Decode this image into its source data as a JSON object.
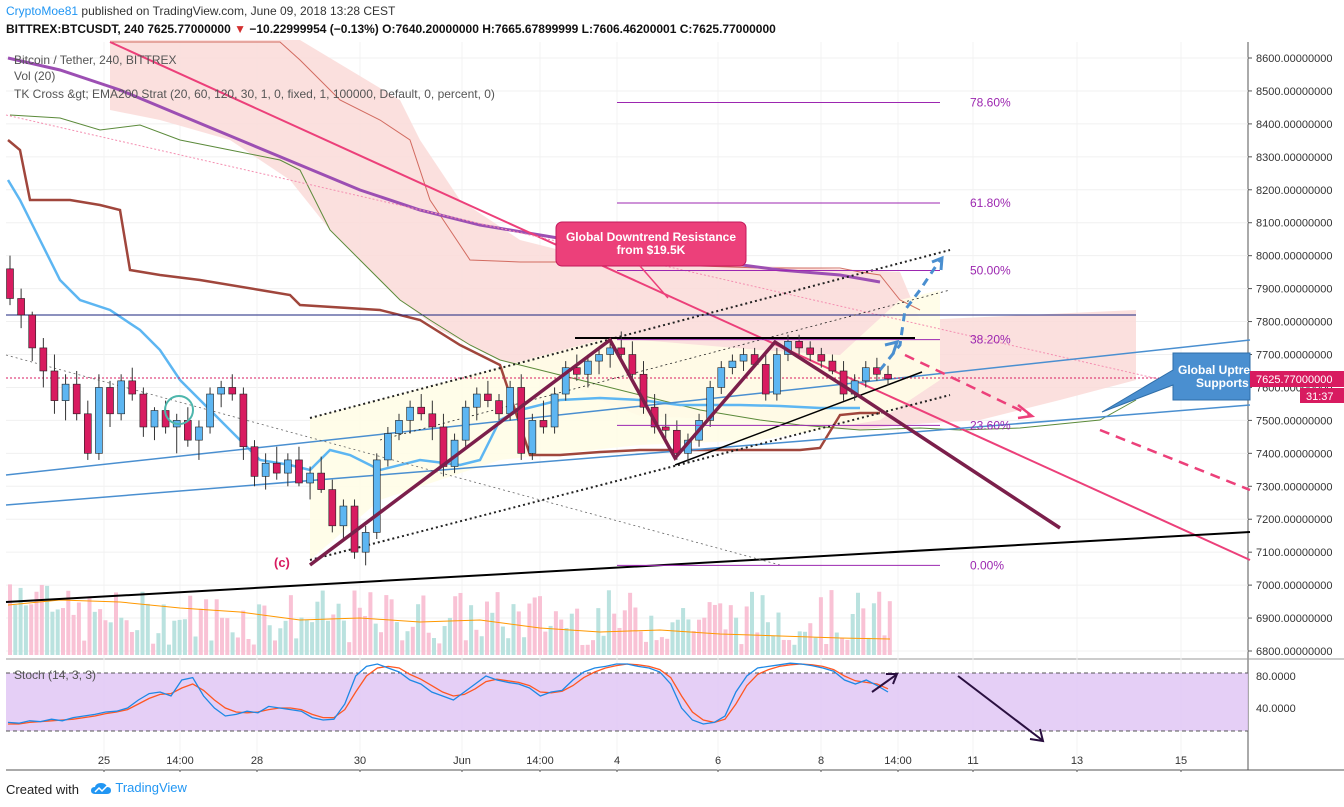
{
  "header": {
    "author": "CryptoMoe81",
    "published": "published on TradingView.com, June 09, 2018 13:28 CEST",
    "symbol_line": "BITTREX:BTCUSDT, 240  7625.77000000",
    "change": "−10.22999954 (−0.13%)",
    "ohlc": "O:7640.20000000 H:7665.67899999 L:7606.46200001 C:7625.77000000"
  },
  "legend": {
    "title": "Bitcoin / Tether, 240, BITTREX",
    "vol": "Vol (20)",
    "strategy": "TK Cross &gt; EMA200 Strat (20, 60, 120, 30, 1, 0, fixed, 1, 100000, Default, 0, percent, 0)"
  },
  "stoch_label": "Stoch (14, 3, 3)",
  "footer": {
    "created": "Created with",
    "brand": "TradingView"
  },
  "annotations": {
    "resistance": [
      "Global Downtrend Resistance",
      "from $19.5K"
    ],
    "support": [
      "Global Uptrend",
      "Supports"
    ],
    "wave_label": "(c)"
  },
  "colors": {
    "up": "#26a69a",
    "down": "#d81b60",
    "tenkan": "#5db6f2",
    "kijun": "#a0463c",
    "ema200": "#9c4fb3",
    "fib": "#9c27b0",
    "callout": "#ec407a",
    "support_box": "#4a8fd0"
  },
  "chart_data": {
    "type": "candlestick",
    "symbol": "BTCUSDT",
    "timeframe": "240",
    "last_price": "7625.77000000",
    "countdown": "31:37",
    "y_axis": {
      "range": [
        6780,
        8640
      ],
      "ticks": [
        "8600.00000000",
        "8500.00000000",
        "8400.00000000",
        "8300.00000000",
        "8200.00000000",
        "8100.00000000",
        "8000.00000000",
        "7900.00000000",
        "7800.00000000",
        "7700.00000000",
        "7600.00000000",
        "7500.00000000",
        "7400.00000000",
        "7300.00000000",
        "7200.00000000",
        "7100.00000000",
        "7000.00000000",
        "6900.00000000",
        "6800.00000000"
      ]
    },
    "x_axis": {
      "ticks": [
        "25",
        "14:00",
        "28",
        "30",
        "Jun",
        "14:00",
        "4",
        "6",
        "8",
        "14:00",
        "11",
        "13",
        "15"
      ]
    },
    "fib_levels": [
      {
        "label": "78.60%",
        "value": 8465
      },
      {
        "label": "61.80%",
        "value": 8160
      },
      {
        "label": "50.00%",
        "value": 7955
      },
      {
        "label": "38.20%",
        "value": 7745
      },
      {
        "label": "23.60%",
        "value": 7485
      },
      {
        "label": "0.00%",
        "value": 7060
      }
    ],
    "stoch": {
      "levels": [
        80,
        20
      ],
      "ticks": [
        "80.0000",
        "40.0000"
      ],
      "k": [
        22,
        21,
        24,
        23,
        26,
        24,
        28,
        30,
        32,
        35,
        36,
        40,
        50,
        58,
        60,
        55,
        75,
        78,
        55,
        40,
        30,
        32,
        36,
        34,
        42,
        40,
        38,
        36,
        28,
        25,
        26,
        45,
        80,
        92,
        95,
        90,
        85,
        75,
        70,
        60,
        55,
        50,
        60,
        70,
        80,
        75,
        72,
        70,
        65,
        55,
        60,
        62,
        75,
        85,
        90,
        92,
        95,
        95,
        92,
        90,
        85,
        70,
        40,
        25,
        20,
        22,
        30,
        60,
        80,
        90,
        92,
        94,
        96,
        95,
        93,
        90,
        86,
        75,
        70,
        75,
        68,
        60
      ],
      "d": [
        20,
        20,
        22,
        23,
        24,
        25,
        26,
        28,
        30,
        33,
        35,
        38,
        45,
        52,
        57,
        58,
        65,
        70,
        62,
        50,
        40,
        35,
        34,
        35,
        38,
        40,
        40,
        38,
        32,
        28,
        28,
        38,
        60,
        80,
        90,
        92,
        90,
        82,
        76,
        68,
        60,
        55,
        57,
        64,
        73,
        76,
        74,
        72,
        68,
        60,
        59,
        61,
        68,
        78,
        85,
        90,
        93,
        95,
        94,
        92,
        88,
        78,
        55,
        35,
        25,
        22,
        26,
        45,
        68,
        82,
        88,
        92,
        94,
        95,
        94,
        92,
        88,
        80,
        74,
        72,
        70,
        64
      ]
    },
    "candles_ohlc": [
      [
        7960,
        8000,
        7850,
        7870
      ],
      [
        7870,
        7900,
        7780,
        7820
      ],
      [
        7820,
        7830,
        7680,
        7720
      ],
      [
        7720,
        7750,
        7600,
        7650
      ],
      [
        7650,
        7700,
        7520,
        7560
      ],
      [
        7560,
        7640,
        7500,
        7610
      ],
      [
        7610,
        7650,
        7500,
        7520
      ],
      [
        7520,
        7560,
        7380,
        7400
      ],
      [
        7400,
        7640,
        7380,
        7600
      ],
      [
        7600,
        7620,
        7480,
        7520
      ],
      [
        7520,
        7640,
        7500,
        7620
      ],
      [
        7620,
        7660,
        7560,
        7580
      ],
      [
        7580,
        7600,
        7450,
        7480
      ],
      [
        7480,
        7540,
        7440,
        7530
      ],
      [
        7530,
        7560,
        7460,
        7480
      ],
      [
        7480,
        7520,
        7400,
        7500
      ],
      [
        7500,
        7540,
        7420,
        7440
      ],
      [
        7440,
        7500,
        7380,
        7480
      ],
      [
        7480,
        7600,
        7460,
        7580
      ],
      [
        7580,
        7620,
        7540,
        7600
      ],
      [
        7600,
        7640,
        7560,
        7580
      ],
      [
        7580,
        7600,
        7380,
        7420
      ],
      [
        7420,
        7440,
        7300,
        7330
      ],
      [
        7330,
        7400,
        7290,
        7370
      ],
      [
        7370,
        7420,
        7320,
        7340
      ],
      [
        7340,
        7400,
        7300,
        7380
      ],
      [
        7380,
        7420,
        7300,
        7310
      ],
      [
        7310,
        7360,
        7260,
        7340
      ],
      [
        7340,
        7390,
        7280,
        7290
      ],
      [
        7290,
        7320,
        7160,
        7180
      ],
      [
        7180,
        7260,
        7140,
        7240
      ],
      [
        7240,
        7260,
        7080,
        7100
      ],
      [
        7100,
        7180,
        7060,
        7160
      ],
      [
        7160,
        7400,
        7140,
        7380
      ],
      [
        7380,
        7480,
        7360,
        7460
      ],
      [
        7460,
        7520,
        7440,
        7500
      ],
      [
        7500,
        7560,
        7460,
        7540
      ],
      [
        7540,
        7580,
        7500,
        7520
      ],
      [
        7520,
        7560,
        7440,
        7480
      ],
      [
        7480,
        7520,
        7330,
        7360
      ],
      [
        7360,
        7460,
        7340,
        7440
      ],
      [
        7440,
        7560,
        7420,
        7540
      ],
      [
        7540,
        7600,
        7500,
        7580
      ],
      [
        7580,
        7620,
        7540,
        7560
      ],
      [
        7560,
        7580,
        7500,
        7520
      ],
      [
        7520,
        7620,
        7500,
        7600
      ],
      [
        7600,
        7640,
        7380,
        7400
      ],
      [
        7400,
        7520,
        7380,
        7500
      ],
      [
        7500,
        7560,
        7460,
        7480
      ],
      [
        7480,
        7600,
        7460,
        7580
      ],
      [
        7580,
        7680,
        7560,
        7660
      ],
      [
        7660,
        7700,
        7620,
        7640
      ],
      [
        7640,
        7700,
        7600,
        7680
      ],
      [
        7680,
        7720,
        7640,
        7700
      ],
      [
        7700,
        7740,
        7660,
        7720
      ],
      [
        7720,
        7770,
        7680,
        7700
      ],
      [
        7700,
        7740,
        7620,
        7640
      ],
      [
        7640,
        7680,
        7520,
        7540
      ],
      [
        7540,
        7580,
        7460,
        7480
      ],
      [
        7480,
        7520,
        7440,
        7470
      ],
      [
        7470,
        7500,
        7380,
        7400
      ],
      [
        7400,
        7460,
        7370,
        7440
      ],
      [
        7440,
        7520,
        7420,
        7500
      ],
      [
        7500,
        7620,
        7480,
        7600
      ],
      [
        7600,
        7680,
        7580,
        7660
      ],
      [
        7660,
        7700,
        7640,
        7680
      ],
      [
        7680,
        7720,
        7650,
        7700
      ],
      [
        7700,
        7720,
        7660,
        7670
      ],
      [
        7670,
        7700,
        7560,
        7580
      ],
      [
        7580,
        7720,
        7560,
        7700
      ],
      [
        7700,
        7760,
        7680,
        7740
      ],
      [
        7740,
        7760,
        7700,
        7720
      ],
      [
        7720,
        7740,
        7680,
        7700
      ],
      [
        7700,
        7720,
        7660,
        7680
      ],
      [
        7680,
        7700,
        7640,
        7650
      ],
      [
        7650,
        7680,
        7560,
        7580
      ],
      [
        7580,
        7640,
        7560,
        7620
      ],
      [
        7620,
        7680,
        7600,
        7660
      ],
      [
        7660,
        7690,
        7620,
        7640
      ],
      [
        7640,
        7666,
        7606,
        7626
      ]
    ]
  }
}
